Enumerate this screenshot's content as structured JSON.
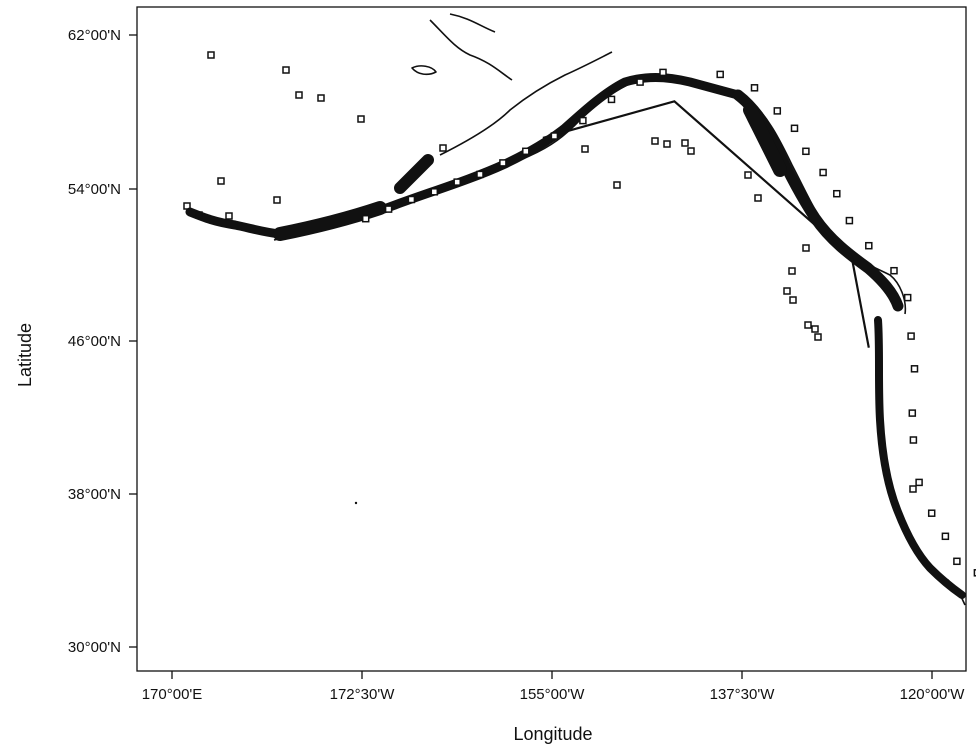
{
  "chart_data": {
    "type": "scatter",
    "xlabel": "Longitude",
    "ylabel": "Latitude",
    "x_ticks": [
      "170°00'E",
      "172°30'W",
      "155°00'W",
      "137°30'W",
      "120°00'W"
    ],
    "y_ticks": [
      "62°00'N",
      "54°00'N",
      "46°00'N",
      "38°00'N",
      "30°00'N"
    ],
    "xlim_deg_east": [
      168,
      240.5
    ],
    "ylim_deg_north": [
      28.8,
      63.3
    ],
    "grid": false,
    "legend": "none",
    "boundary_line": [
      {
        "lon": -156.5,
        "lat": 56.5
      },
      {
        "lon": -145.0,
        "lat": 58.4
      },
      {
        "lon": -129.5,
        "lat": 50.3
      },
      {
        "lon": -128.0,
        "lat": 45.6
      }
    ],
    "sample_points": [
      {
        "lon": -172.0,
        "lat": 52.3
      },
      {
        "lon": -170.0,
        "lat": 52.8
      },
      {
        "lon": -168.0,
        "lat": 53.3
      },
      {
        "lon": -166.0,
        "lat": 53.7
      },
      {
        "lon": -164.0,
        "lat": 54.2
      },
      {
        "lon": -162.0,
        "lat": 54.6
      },
      {
        "lon": -160.0,
        "lat": 55.2
      },
      {
        "lon": -158.0,
        "lat": 55.8
      },
      {
        "lon": -155.5,
        "lat": 56.6
      },
      {
        "lon": -153.0,
        "lat": 57.4
      },
      {
        "lon": -150.5,
        "lat": 58.5
      },
      {
        "lon": -148.0,
        "lat": 59.4
      },
      {
        "lon": -146.0,
        "lat": 59.9
      },
      {
        "lon": -141.0,
        "lat": 59.8
      },
      {
        "lon": -138.0,
        "lat": 59.1
      },
      {
        "lon": -136.0,
        "lat": 57.9
      },
      {
        "lon": -134.5,
        "lat": 57.0
      },
      {
        "lon": -133.5,
        "lat": 55.8
      },
      {
        "lon": -132.0,
        "lat": 54.7
      },
      {
        "lon": -130.8,
        "lat": 53.6
      },
      {
        "lon": -129.7,
        "lat": 52.2
      },
      {
        "lon": -128.0,
        "lat": 50.9
      },
      {
        "lon": -125.8,
        "lat": 49.6
      },
      {
        "lon": -124.6,
        "lat": 48.2
      },
      {
        "lon": -124.3,
        "lat": 46.2
      },
      {
        "lon": -124.0,
        "lat": 44.5
      },
      {
        "lon": -124.2,
        "lat": 42.2
      },
      {
        "lon": -124.1,
        "lat": 40.8
      },
      {
        "lon": -123.6,
        "lat": 38.6
      },
      {
        "lon": -122.5,
        "lat": 37.0
      },
      {
        "lon": -121.3,
        "lat": 35.8
      },
      {
        "lon": -120.3,
        "lat": 34.5
      },
      {
        "lon": -118.5,
        "lat": 33.9
      },
      {
        "lon": -117.5,
        "lat": 33.2
      }
    ]
  }
}
